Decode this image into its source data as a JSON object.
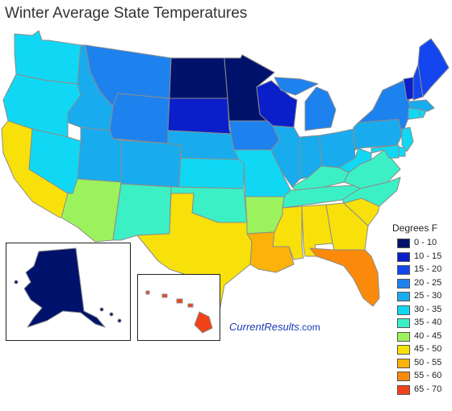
{
  "title": "Winter Average State Temperatures",
  "credit": {
    "brand_a": "Current",
    "brand_b": "Results",
    "brand_c": ".com"
  },
  "legend": {
    "title": "Degrees F",
    "items": [
      {
        "label": "0 - 10",
        "color": "#00126b"
      },
      {
        "label": "10 - 15",
        "color": "#0a1fc9"
      },
      {
        "label": "15 - 20",
        "color": "#1446f0"
      },
      {
        "label": "20 - 25",
        "color": "#1e82ee"
      },
      {
        "label": "25 - 30",
        "color": "#18acee"
      },
      {
        "label": "30 - 35",
        "color": "#10d8f4"
      },
      {
        "label": "35 - 40",
        "color": "#3cf0c6"
      },
      {
        "label": "40 - 45",
        "color": "#9cf25c"
      },
      {
        "label": "45 - 50",
        "color": "#f8e10a"
      },
      {
        "label": "50 - 55",
        "color": "#fbb20a"
      },
      {
        "label": "55 - 60",
        "color": "#fb8a0c"
      },
      {
        "label": "65 - 70",
        "color": "#f2421a"
      }
    ]
  },
  "states": [
    {
      "id": "WA",
      "band": 5
    },
    {
      "id": "OR",
      "band": 5
    },
    {
      "id": "CA",
      "band": 8
    },
    {
      "id": "NV",
      "band": 5
    },
    {
      "id": "ID",
      "band": 4
    },
    {
      "id": "MT",
      "band": 3
    },
    {
      "id": "WY",
      "band": 3
    },
    {
      "id": "UT",
      "band": 4
    },
    {
      "id": "AZ",
      "band": 7
    },
    {
      "id": "CO",
      "band": 4
    },
    {
      "id": "NM",
      "band": 6
    },
    {
      "id": "ND",
      "band": 0
    },
    {
      "id": "SD",
      "band": 1
    },
    {
      "id": "NE",
      "band": 4
    },
    {
      "id": "KS",
      "band": 5
    },
    {
      "id": "OK",
      "band": 6
    },
    {
      "id": "TX",
      "band": 8
    },
    {
      "id": "MN",
      "band": 0
    },
    {
      "id": "IA",
      "band": 3
    },
    {
      "id": "MO",
      "band": 5
    },
    {
      "id": "AR",
      "band": 7
    },
    {
      "id": "LA",
      "band": 9
    },
    {
      "id": "WI",
      "band": 1
    },
    {
      "id": "IL",
      "band": 4
    },
    {
      "id": "MI",
      "band": 3
    },
    {
      "id": "IN",
      "band": 4
    },
    {
      "id": "OH",
      "band": 4
    },
    {
      "id": "KY",
      "band": 6
    },
    {
      "id": "TN",
      "band": 6
    },
    {
      "id": "MS",
      "band": 8
    },
    {
      "id": "AL",
      "band": 8
    },
    {
      "id": "GA",
      "band": 8
    },
    {
      "id": "FL",
      "band": 10
    },
    {
      "id": "SC",
      "band": 8
    },
    {
      "id": "NC",
      "band": 6
    },
    {
      "id": "VA",
      "band": 6
    },
    {
      "id": "WV",
      "band": 5
    },
    {
      "id": "PA",
      "band": 4
    },
    {
      "id": "NY",
      "band": 3
    },
    {
      "id": "VT",
      "band": 1
    },
    {
      "id": "NH",
      "band": 2
    },
    {
      "id": "ME",
      "band": 2
    },
    {
      "id": "MA",
      "band": 4
    },
    {
      "id": "CT",
      "band": 5
    },
    {
      "id": "RI",
      "band": 5
    },
    {
      "id": "NJ",
      "band": 5
    },
    {
      "id": "DE",
      "band": 5
    },
    {
      "id": "MD",
      "band": 5
    },
    {
      "id": "AK",
      "band": 0
    },
    {
      "id": "HI",
      "band": 11
    }
  ]
}
